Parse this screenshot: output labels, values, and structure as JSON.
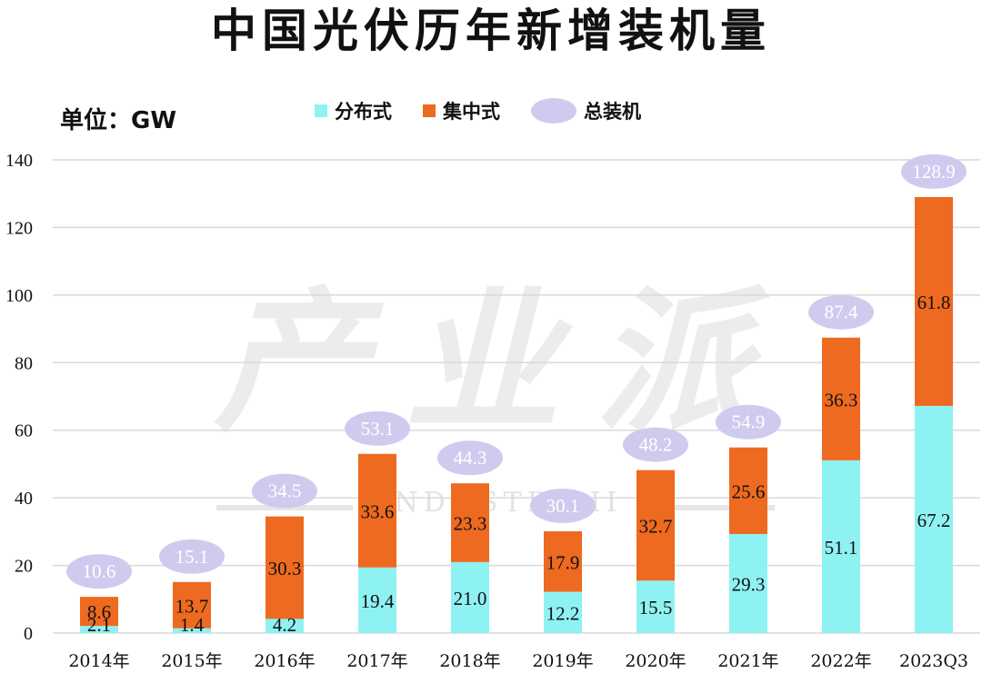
{
  "title": "中国光伏历年新增装机量",
  "unit_label": "单位：GW",
  "watermark": {
    "main": "产业派",
    "sub": "INDUSTRY II"
  },
  "colors": {
    "distributed": "#8ff2f2",
    "centralized": "#ee6a20",
    "total": "#cfcbef",
    "grid": "#d9d9d9"
  },
  "chart_data": {
    "type": "bar",
    "stacked": true,
    "categories": [
      "2014年",
      "2015年",
      "2016年",
      "2017年",
      "2018年",
      "2019年",
      "2020年",
      "2021年",
      "2022年",
      "2023Q3"
    ],
    "series": [
      {
        "name": "分布式",
        "values": [
          2.1,
          1.4,
          4.2,
          19.4,
          21.0,
          12.2,
          15.5,
          29.3,
          51.1,
          67.2
        ]
      },
      {
        "name": "集中式",
        "values": [
          8.6,
          13.7,
          30.3,
          33.6,
          23.3,
          17.9,
          32.7,
          25.6,
          36.3,
          61.8
        ]
      }
    ],
    "totals": {
      "name": "总装机",
      "values": [
        10.6,
        15.1,
        34.5,
        53.1,
        44.3,
        30.1,
        48.2,
        54.9,
        87.4,
        128.9
      ]
    },
    "ylim": [
      0,
      140
    ],
    "yticks": [
      0,
      20,
      40,
      60,
      80,
      100,
      120,
      140
    ],
    "grid": true,
    "legend_position": "top-center"
  }
}
